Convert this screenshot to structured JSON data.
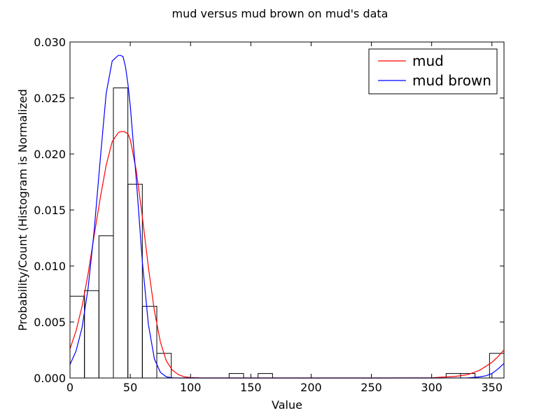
{
  "chart_data": {
    "type": "histogram",
    "title": "mud versus mud brown on mud's data",
    "xlabel": "Value",
    "ylabel": "Probability/Count (Histogram is Normalized",
    "xlim": [
      0,
      360
    ],
    "ylim": [
      0,
      0.03
    ],
    "xticks": [
      0,
      50,
      100,
      150,
      200,
      250,
      300,
      350
    ],
    "yticks": [
      "0.000",
      "0.005",
      "0.010",
      "0.015",
      "0.020",
      "0.025",
      "0.030"
    ],
    "grid": false,
    "legend_position": "top-right",
    "histogram": {
      "bin_width": 12,
      "bins": [
        {
          "x": 0,
          "value": 0.0073
        },
        {
          "x": 12,
          "value": 0.0078
        },
        {
          "x": 24,
          "value": 0.0127
        },
        {
          "x": 36,
          "value": 0.0259
        },
        {
          "x": 48,
          "value": 0.0173
        },
        {
          "x": 60,
          "value": 0.0064
        },
        {
          "x": 72,
          "value": 0.0022
        },
        {
          "x": 84,
          "value": 0.0
        },
        {
          "x": 96,
          "value": 0.0
        },
        {
          "x": 108,
          "value": 0.0
        },
        {
          "x": 120,
          "value": 0.0
        },
        {
          "x": 132,
          "value": 0.0004
        },
        {
          "x": 144,
          "value": 0.0
        },
        {
          "x": 156,
          "value": 0.0004
        },
        {
          "x": 168,
          "value": 0.0
        },
        {
          "x": 180,
          "value": 0.0
        },
        {
          "x": 192,
          "value": 0.0
        },
        {
          "x": 204,
          "value": 0.0
        },
        {
          "x": 216,
          "value": 0.0
        },
        {
          "x": 228,
          "value": 0.0
        },
        {
          "x": 240,
          "value": 0.0
        },
        {
          "x": 252,
          "value": 0.0
        },
        {
          "x": 264,
          "value": 0.0
        },
        {
          "x": 276,
          "value": 0.0
        },
        {
          "x": 288,
          "value": 0.0
        },
        {
          "x": 300,
          "value": 0.0
        },
        {
          "x": 312,
          "value": 0.0004
        },
        {
          "x": 324,
          "value": 0.0004
        },
        {
          "x": 336,
          "value": 0.0
        },
        {
          "x": 348,
          "value": 0.0022
        }
      ]
    },
    "series": [
      {
        "name": "mud",
        "color": "#ff0000",
        "x": [
          0,
          5,
          10,
          15,
          20,
          25,
          30,
          35,
          40,
          42,
          45,
          48,
          50,
          55,
          60,
          65,
          70,
          75,
          80,
          85,
          90,
          95,
          100,
          110,
          120,
          140,
          200,
          260,
          300,
          320,
          330,
          340,
          350,
          355,
          360
        ],
        "y": [
          0.0026,
          0.0042,
          0.0064,
          0.0093,
          0.0127,
          0.016,
          0.019,
          0.0211,
          0.0219,
          0.022,
          0.022,
          0.0218,
          0.0213,
          0.0185,
          0.0144,
          0.0099,
          0.006,
          0.0032,
          0.0015,
          0.0007,
          0.0003,
          0.0001,
          4e-05,
          0.0,
          0.0,
          0.0,
          0.0,
          0.0,
          2e-05,
          0.00015,
          0.0003,
          0.0007,
          0.0014,
          0.0019,
          0.0025
        ]
      },
      {
        "name": "mud brown",
        "color": "#0000ff",
        "x": [
          0,
          5,
          10,
          15,
          20,
          25,
          30,
          35,
          40,
          42,
          44,
          46,
          48,
          50,
          55,
          60,
          65,
          70,
          75,
          80,
          85,
          90,
          100,
          120,
          200,
          300,
          330,
          340,
          345,
          350,
          355,
          360
        ],
        "y": [
          0.0012,
          0.0024,
          0.0045,
          0.008,
          0.0131,
          0.0194,
          0.0254,
          0.0283,
          0.0288,
          0.0288,
          0.0287,
          0.0278,
          0.0263,
          0.0243,
          0.0177,
          0.0104,
          0.0048,
          0.0017,
          0.0005,
          0.0001,
          2e-05,
          0.0,
          0.0,
          0.0,
          0.0,
          0.0,
          1e-05,
          0.0001,
          0.0002,
          0.0004,
          0.0008,
          0.0013
        ]
      }
    ]
  }
}
